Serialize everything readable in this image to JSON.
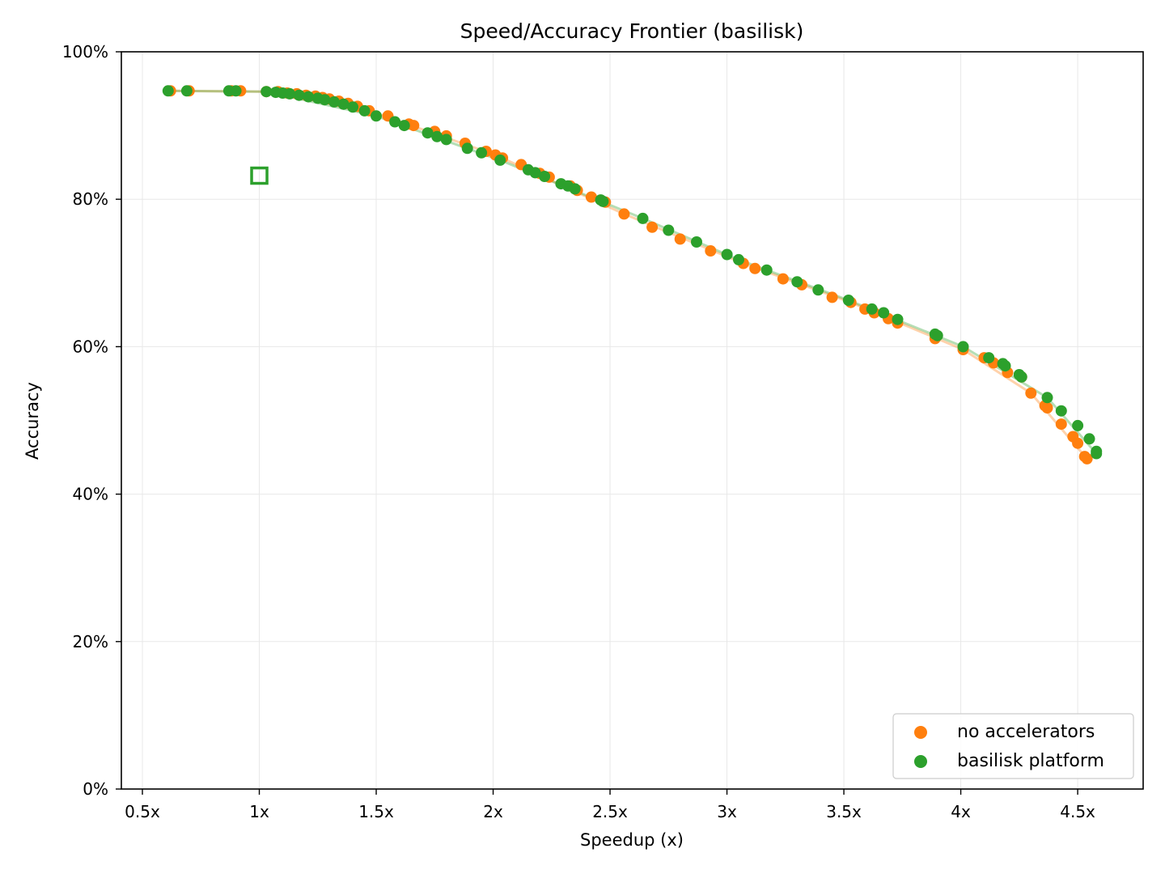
{
  "chart_data": {
    "type": "scatter",
    "title": "Speed/Accuracy Frontier (basilisk)",
    "xlabel": "Speedup (x)",
    "ylabel": "Accuracy",
    "xlim": [
      0.41,
      4.78
    ],
    "ylim": [
      0,
      100
    ],
    "x_ticks": [
      0.5,
      1,
      1.5,
      2,
      2.5,
      3,
      3.5,
      4,
      4.5
    ],
    "x_tick_labels": [
      "0.5x",
      "1x",
      "1.5x",
      "2x",
      "2.5x",
      "3x",
      "3.5x",
      "4x",
      "4.5x"
    ],
    "y_ticks": [
      0,
      20,
      40,
      60,
      80,
      100
    ],
    "y_tick_labels": [
      "0%",
      "20%",
      "40%",
      "60%",
      "80%",
      "100%"
    ],
    "grid": true,
    "legend_position": "bottom-right",
    "series": [
      {
        "name": "no accelerators",
        "color": "#ff7f0e",
        "points": [
          [
            0.62,
            94.7
          ],
          [
            0.7,
            94.7
          ],
          [
            0.88,
            94.7
          ],
          [
            0.92,
            94.7
          ],
          [
            1.03,
            94.6
          ],
          [
            1.08,
            94.6
          ],
          [
            1.12,
            94.4
          ],
          [
            1.16,
            94.3
          ],
          [
            1.2,
            94.1
          ],
          [
            1.24,
            94.0
          ],
          [
            1.27,
            93.8
          ],
          [
            1.3,
            93.6
          ],
          [
            1.34,
            93.3
          ],
          [
            1.38,
            93.0
          ],
          [
            1.42,
            92.6
          ],
          [
            1.47,
            92.0
          ],
          [
            1.55,
            91.3
          ],
          [
            1.64,
            90.2
          ],
          [
            1.66,
            90.0
          ],
          [
            1.75,
            89.2
          ],
          [
            1.8,
            88.6
          ],
          [
            1.88,
            87.6
          ],
          [
            1.97,
            86.5
          ],
          [
            2.01,
            86.0
          ],
          [
            2.04,
            85.6
          ],
          [
            2.12,
            84.7
          ],
          [
            2.2,
            83.5
          ],
          [
            2.24,
            83.0
          ],
          [
            2.33,
            81.8
          ],
          [
            2.36,
            81.2
          ],
          [
            2.42,
            80.3
          ],
          [
            2.48,
            79.6
          ],
          [
            2.56,
            78.0
          ],
          [
            2.68,
            76.2
          ],
          [
            2.8,
            74.6
          ],
          [
            2.93,
            73.0
          ],
          [
            3.07,
            71.3
          ],
          [
            3.12,
            70.6
          ],
          [
            3.24,
            69.2
          ],
          [
            3.32,
            68.4
          ],
          [
            3.45,
            66.7
          ],
          [
            3.53,
            66.0
          ],
          [
            3.59,
            65.1
          ],
          [
            3.63,
            64.6
          ],
          [
            3.69,
            63.8
          ],
          [
            3.73,
            63.2
          ],
          [
            3.89,
            61.1
          ],
          [
            4.01,
            59.6
          ],
          [
            4.1,
            58.5
          ],
          [
            4.14,
            57.8
          ],
          [
            4.2,
            56.5
          ],
          [
            4.26,
            55.9
          ],
          [
            4.3,
            53.7
          ],
          [
            4.36,
            52.0
          ],
          [
            4.37,
            51.7
          ],
          [
            4.43,
            49.5
          ],
          [
            4.48,
            47.8
          ],
          [
            4.5,
            46.9
          ],
          [
            4.53,
            45.1
          ],
          [
            4.54,
            44.8
          ]
        ]
      },
      {
        "name": "basilisk platform",
        "color": "#2ca02c",
        "points": [
          [
            0.61,
            94.7
          ],
          [
            0.69,
            94.7
          ],
          [
            0.87,
            94.7
          ],
          [
            0.9,
            94.7
          ],
          [
            1.03,
            94.6
          ],
          [
            1.07,
            94.5
          ],
          [
            1.1,
            94.4
          ],
          [
            1.13,
            94.3
          ],
          [
            1.17,
            94.1
          ],
          [
            1.21,
            93.9
          ],
          [
            1.25,
            93.7
          ],
          [
            1.28,
            93.5
          ],
          [
            1.32,
            93.2
          ],
          [
            1.36,
            92.9
          ],
          [
            1.4,
            92.5
          ],
          [
            1.45,
            92.0
          ],
          [
            1.5,
            91.3
          ],
          [
            1.58,
            90.5
          ],
          [
            1.62,
            90.0
          ],
          [
            1.72,
            89.0
          ],
          [
            1.76,
            88.5
          ],
          [
            1.8,
            88.1
          ],
          [
            1.89,
            86.9
          ],
          [
            1.95,
            86.3
          ],
          [
            2.03,
            85.3
          ],
          [
            2.15,
            84.0
          ],
          [
            2.18,
            83.6
          ],
          [
            2.22,
            83.1
          ],
          [
            2.29,
            82.1
          ],
          [
            2.32,
            81.8
          ],
          [
            2.35,
            81.4
          ],
          [
            2.46,
            79.9
          ],
          [
            2.47,
            79.7
          ],
          [
            2.64,
            77.4
          ],
          [
            2.75,
            75.8
          ],
          [
            2.87,
            74.2
          ],
          [
            3.0,
            72.5
          ],
          [
            3.05,
            71.8
          ],
          [
            3.17,
            70.4
          ],
          [
            3.3,
            68.8
          ],
          [
            3.39,
            67.7
          ],
          [
            3.52,
            66.3
          ],
          [
            3.62,
            65.1
          ],
          [
            3.67,
            64.6
          ],
          [
            3.73,
            63.7
          ],
          [
            3.89,
            61.7
          ],
          [
            3.9,
            61.5
          ],
          [
            4.01,
            60.0
          ],
          [
            4.12,
            58.5
          ],
          [
            4.18,
            57.7
          ],
          [
            4.19,
            57.4
          ],
          [
            4.25,
            56.2
          ],
          [
            4.26,
            55.9
          ],
          [
            4.37,
            53.1
          ],
          [
            4.43,
            51.3
          ],
          [
            4.5,
            49.3
          ],
          [
            4.55,
            47.5
          ],
          [
            4.58,
            45.8
          ],
          [
            4.58,
            45.5
          ]
        ]
      }
    ],
    "frontier_lines": [
      {
        "series": "no accelerators",
        "color": "#ff7f0e",
        "points": [
          [
            0.62,
            94.7
          ],
          [
            1.03,
            94.6
          ],
          [
            1.47,
            92.0
          ],
          [
            2.01,
            86.0
          ],
          [
            2.56,
            78.0
          ],
          [
            3.07,
            71.3
          ],
          [
            3.53,
            66.0
          ],
          [
            4.01,
            59.6
          ],
          [
            4.3,
            53.7
          ],
          [
            4.54,
            44.8
          ]
        ]
      },
      {
        "series": "basilisk platform",
        "color": "#2ca02c",
        "points": [
          [
            0.61,
            94.7
          ],
          [
            1.03,
            94.6
          ],
          [
            1.5,
            91.3
          ],
          [
            2.03,
            85.3
          ],
          [
            2.64,
            77.4
          ],
          [
            3.05,
            71.8
          ],
          [
            3.52,
            66.3
          ],
          [
            4.01,
            60.0
          ],
          [
            4.37,
            53.1
          ],
          [
            4.58,
            45.5
          ]
        ]
      }
    ],
    "annotations": [
      {
        "kind": "hollow-square-marker",
        "x": 1.0,
        "y": 83.2,
        "color": "#2ca02c"
      }
    ]
  }
}
